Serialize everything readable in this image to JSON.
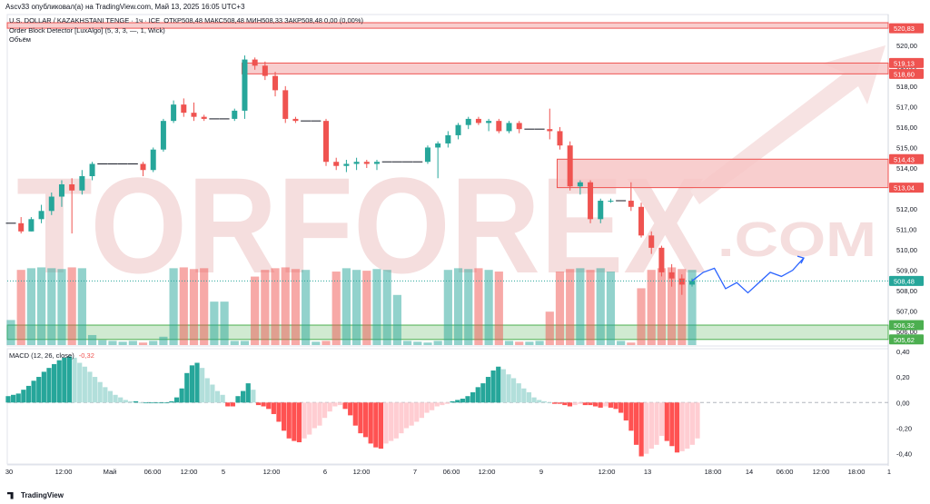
{
  "header": {
    "publisher": "Ascv33 опубликовал(а) на TradingView.com, Май 13, 2025 16:05 UTC+3"
  },
  "legend": {
    "title": "U.S. DOLLAR / KAZAKHSTANI TENGE · 1ч · ICE",
    "ohlc": "ОТКР508,48 МАКС508,48 МИН508,33 ЗАКР508,48 0,00 (0,00%)",
    "indicator": "Order Block Detector [LuxAlgo] (5, 3, 3, —, 1, Wick)",
    "volume": "Объём"
  },
  "macd_label": "MACD (12, 26, close)",
  "macd_value": "-0,32",
  "watermark": {
    "text": "TORFOREX",
    "suffix": ".COM"
  },
  "footer": {
    "logo": "TradingView"
  },
  "colors": {
    "up": "#26a69a",
    "down": "#ef5350",
    "ob_bear_fill": "#f7c5c5",
    "ob_bull_fill": "#c8e6c9",
    "forecast": "#2962ff",
    "watermark": "#f3d8d8"
  },
  "chart_data": {
    "type": "candlestick",
    "currency": "KZT",
    "symbol": "U.S. DOLLAR / KAZAKHSTANI TENGE",
    "timeframe": "1ч",
    "ylim": [
      505.3,
      521.5
    ],
    "y_ticks": [
      "520,00",
      "519,00",
      "518,00",
      "517,00",
      "516,00",
      "515,00",
      "514,00",
      "513,00",
      "512,00",
      "511,00",
      "510,00",
      "509,00",
      "508,00",
      "507,00",
      "506,00"
    ],
    "y_tick_values": [
      520,
      519,
      518,
      517,
      516,
      515,
      514,
      513,
      512,
      511,
      510,
      509,
      508,
      507,
      506
    ],
    "x_ticks": [
      "30",
      "12:00",
      "Май",
      "06:00",
      "12:00",
      "5",
      "12:00",
      "6",
      "12:00",
      "7",
      "06:00",
      "12:00",
      "9",
      "12:00",
      "13",
      "18:00",
      "14",
      "06:00",
      "12:00",
      "18:00",
      "1"
    ],
    "price_labels": [
      {
        "text": "520,83",
        "value": 520.83,
        "kind": "bear"
      },
      {
        "text": "519,13",
        "value": 519.13,
        "kind": "bear"
      },
      {
        "text": "518,60",
        "value": 518.6,
        "kind": "bear"
      },
      {
        "text": "514,43",
        "value": 514.43,
        "kind": "bear"
      },
      {
        "text": "513,04",
        "value": 513.04,
        "kind": "bear"
      },
      {
        "text": "508,48",
        "value": 508.48,
        "kind": "last"
      },
      {
        "text": "506,32",
        "value": 506.32,
        "kind": "bull"
      },
      {
        "text": "505,62",
        "value": 505.62,
        "kind": "bull"
      }
    ],
    "order_blocks": [
      {
        "top": 521.1,
        "bottom": 520.83,
        "kind": "bear",
        "start_index": 0
      },
      {
        "top": 519.13,
        "bottom": 518.6,
        "kind": "bear",
        "start_index": 23
      },
      {
        "top": 514.43,
        "bottom": 513.04,
        "kind": "bear",
        "start_index": 54
      },
      {
        "top": 506.32,
        "bottom": 505.62,
        "kind": "bull",
        "start_index": 0
      }
    ],
    "candles": [
      [
        511.3,
        511.3,
        511.3,
        511.3
      ],
      [
        511.3,
        511.6,
        510.8,
        510.9
      ],
      [
        510.9,
        511.6,
        510.9,
        511.5
      ],
      [
        511.5,
        512.2,
        511.3,
        511.9
      ],
      [
        511.9,
        512.8,
        511.7,
        512.6
      ],
      [
        512.6,
        513.4,
        512.1,
        513.2
      ],
      [
        513.2,
        513.5,
        510.8,
        512.9
      ],
      [
        512.9,
        513.9,
        512.7,
        513.6
      ],
      [
        513.6,
        514.3,
        513.4,
        514.2
      ],
      [
        514.2,
        514.2,
        514.2,
        514.2
      ],
      [
        514.2,
        514.2,
        514.2,
        514.2
      ],
      [
        514.2,
        514.2,
        514.2,
        514.2
      ],
      [
        514.2,
        514.2,
        514.2,
        514.2
      ],
      [
        514.2,
        514.3,
        513.6,
        513.9
      ],
      [
        513.9,
        515.0,
        513.8,
        514.9
      ],
      [
        514.9,
        516.4,
        514.8,
        516.3
      ],
      [
        516.3,
        517.3,
        516.2,
        517.1
      ],
      [
        517.1,
        517.4,
        516.5,
        516.7
      ],
      [
        516.7,
        517.2,
        516.3,
        516.5
      ],
      [
        516.5,
        516.6,
        516.3,
        516.4
      ],
      [
        516.4,
        516.4,
        516.4,
        516.4
      ],
      [
        516.4,
        516.4,
        516.4,
        516.4
      ],
      [
        516.4,
        516.9,
        516.3,
        516.8
      ],
      [
        516.8,
        519.5,
        516.4,
        519.3
      ],
      [
        519.3,
        519.4,
        518.8,
        519.0
      ],
      [
        519.0,
        519.2,
        518.3,
        518.5
      ],
      [
        518.5,
        518.7,
        517.5,
        517.8
      ],
      [
        517.8,
        518.0,
        516.2,
        516.4
      ],
      [
        516.4,
        516.5,
        516.2,
        516.3
      ],
      [
        516.3,
        516.3,
        516.3,
        516.3
      ],
      [
        516.3,
        516.3,
        516.3,
        516.3
      ],
      [
        516.3,
        516.4,
        514.1,
        514.3
      ],
      [
        514.3,
        514.5,
        513.9,
        514.1
      ],
      [
        514.1,
        514.4,
        513.8,
        514.2
      ],
      [
        514.2,
        514.5,
        513.9,
        514.3
      ],
      [
        514.3,
        514.4,
        514.0,
        514.2
      ],
      [
        514.2,
        514.4,
        513.9,
        514.3
      ],
      [
        514.3,
        514.3,
        514.3,
        514.3
      ],
      [
        514.3,
        514.3,
        514.3,
        514.3
      ],
      [
        514.3,
        514.3,
        514.3,
        514.3
      ],
      [
        514.3,
        514.3,
        514.3,
        514.3
      ],
      [
        514.3,
        515.1,
        514.2,
        515.0
      ],
      [
        515.0,
        515.3,
        513.5,
        515.2
      ],
      [
        515.2,
        515.8,
        515.0,
        515.6
      ],
      [
        515.6,
        516.2,
        515.4,
        516.1
      ],
      [
        516.1,
        516.5,
        515.9,
        516.4
      ],
      [
        516.4,
        516.5,
        516.1,
        516.2
      ],
      [
        516.2,
        516.4,
        515.8,
        516.3
      ],
      [
        516.3,
        516.4,
        515.7,
        515.8
      ],
      [
        515.8,
        516.3,
        515.7,
        516.2
      ],
      [
        516.2,
        516.3,
        515.7,
        515.9
      ],
      [
        515.9,
        515.9,
        515.9,
        515.9
      ],
      [
        515.9,
        515.9,
        515.9,
        515.9
      ],
      [
        515.9,
        516.9,
        515.4,
        515.8
      ],
      [
        515.8,
        516.0,
        514.9,
        515.1
      ],
      [
        515.1,
        515.3,
        512.9,
        513.1
      ],
      [
        513.1,
        513.4,
        512.7,
        513.3
      ],
      [
        513.3,
        513.4,
        511.3,
        511.5
      ],
      [
        511.5,
        512.5,
        511.3,
        512.4
      ],
      [
        512.4,
        512.5,
        512.3,
        512.4
      ],
      [
        512.4,
        512.4,
        512.4,
        512.4
      ],
      [
        512.4,
        513.3,
        511.9,
        512.1
      ],
      [
        512.1,
        512.3,
        510.6,
        510.7
      ],
      [
        510.7,
        510.9,
        509.8,
        510.1
      ],
      [
        510.1,
        510.2,
        508.7,
        508.9
      ],
      [
        508.9,
        509.3,
        508.2,
        508.6
      ],
      [
        508.6,
        508.8,
        507.8,
        508.3
      ],
      [
        508.3,
        508.6,
        508.2,
        508.48
      ]
    ],
    "volumes": [
      0.3,
      0.9,
      0.92,
      0.93,
      0.92,
      0.91,
      0.93,
      0.92,
      0.12,
      0.06,
      0.05,
      0.04,
      0.05,
      0.03,
      0.05,
      0.1,
      0.92,
      0.93,
      0.91,
      0.92,
      0.52,
      0.52,
      0.05,
      0.05,
      0.82,
      0.9,
      0.92,
      0.93,
      0.91,
      0.9,
      0.04,
      0.05,
      0.88,
      0.92,
      0.9,
      0.89,
      0.91,
      0.9,
      0.6,
      0.05,
      0.04,
      0.03,
      0.05,
      0.9,
      0.92,
      0.91,
      0.92,
      0.9,
      0.88,
      0.05,
      0.04,
      0.04,
      0.05,
      0.4,
      0.88,
      0.91,
      0.92,
      0.9,
      0.92,
      0.88,
      0.05,
      0.03,
      0.68,
      0.9,
      0.92,
      0.93,
      0.91,
      0.9
    ],
    "forecast_path": [
      508.48,
      508.9,
      509.1,
      508.1,
      508.4,
      507.9,
      508.4,
      508.9,
      508.7,
      509.0,
      509.6
    ],
    "macd": {
      "ylim": [
        -0.48,
        0.42
      ],
      "y_ticks": [
        "0,40",
        "0,20",
        "0,00",
        "-0,20",
        "-0,40"
      ],
      "y_tick_values": [
        0.4,
        0.2,
        0.0,
        -0.2,
        -0.4
      ],
      "histogram": [
        0.05,
        0.06,
        0.07,
        0.1,
        0.13,
        0.17,
        0.2,
        0.24,
        0.27,
        0.3,
        0.33,
        0.35,
        0.36,
        0.35,
        0.31,
        0.28,
        0.24,
        0.2,
        0.16,
        0.12,
        0.09,
        0.06,
        0.04,
        0.02,
        0.01,
        0.01,
        0.0,
        0.0,
        0.0,
        0.0,
        0.0,
        0.0,
        0.01,
        0.04,
        0.11,
        0.23,
        0.29,
        0.31,
        0.27,
        0.19,
        0.14,
        0.09,
        0.06,
        -0.03,
        -0.03,
        0.05,
        0.09,
        0.15,
        0.1,
        -0.02,
        -0.03,
        -0.05,
        -0.09,
        -0.15,
        -0.22,
        -0.28,
        -0.3,
        -0.31,
        -0.28,
        -0.25,
        -0.2,
        -0.18,
        -0.12,
        -0.07,
        -0.03,
        -0.02,
        -0.05,
        -0.1,
        -0.18,
        -0.24,
        -0.27,
        -0.32,
        -0.35,
        -0.36,
        -0.32,
        -0.3,
        -0.28,
        -0.24,
        -0.2,
        -0.18,
        -0.15,
        -0.12,
        -0.08,
        -0.06,
        -0.03,
        -0.02,
        -0.01,
        0.01,
        0.02,
        0.03,
        0.05,
        0.08,
        0.12,
        0.15,
        0.2,
        0.25,
        0.28,
        0.26,
        0.22,
        0.19,
        0.15,
        0.11,
        0.08,
        0.04,
        0.02,
        0.01,
        0.0,
        -0.01,
        -0.01,
        -0.02,
        -0.03,
        -0.02,
        -0.01,
        -0.02,
        -0.02,
        -0.03,
        -0.04,
        -0.03,
        -0.04,
        -0.05,
        -0.08,
        -0.14,
        -0.22,
        -0.33,
        -0.42,
        -0.4,
        -0.36,
        -0.33,
        -0.26,
        -0.3,
        -0.34,
        -0.39,
        -0.38,
        -0.36,
        -0.33,
        -0.28
      ]
    }
  }
}
